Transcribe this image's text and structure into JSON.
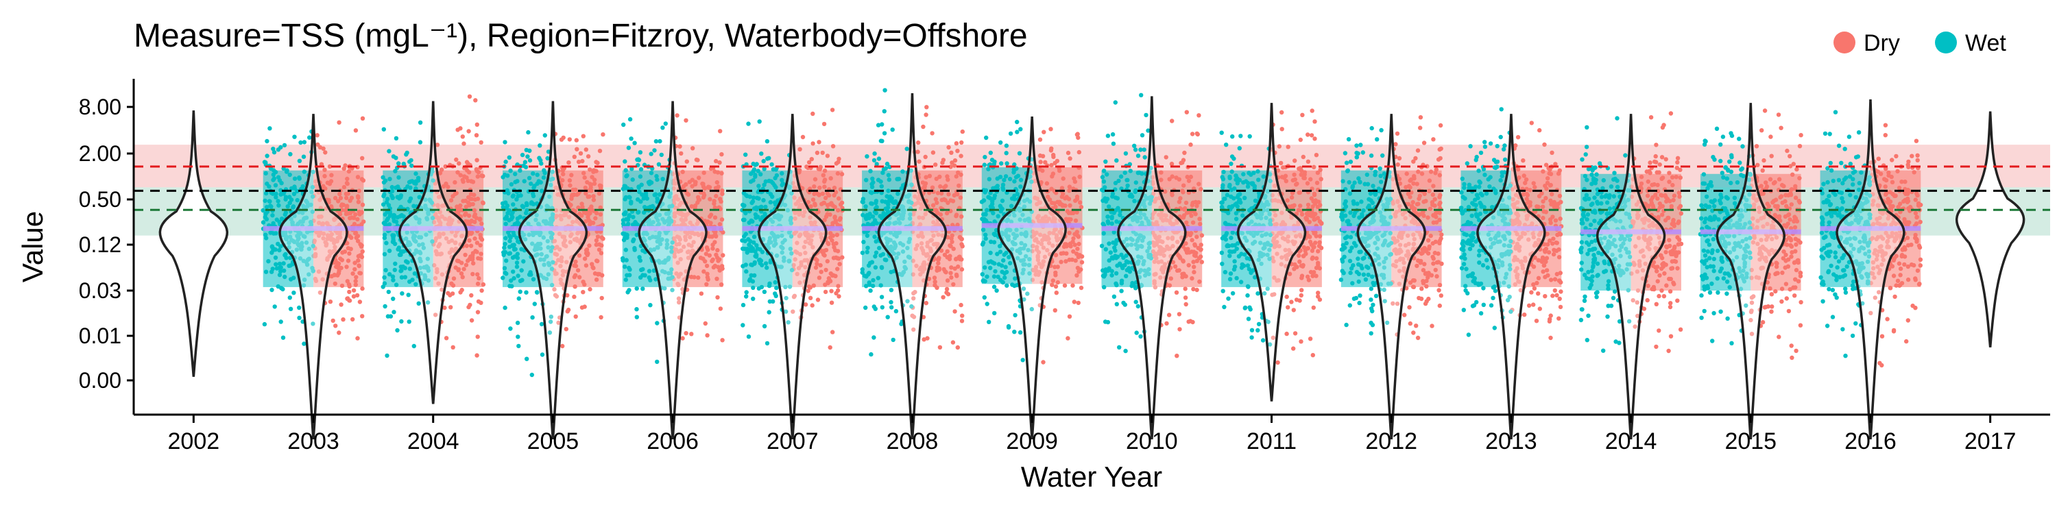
{
  "chart_data": {
    "type": "violin-scatter",
    "title": "Measure=TSS (mgL⁻¹), Region=Fitzroy, Waterbody=Offshore",
    "xlabel": "Water Year",
    "ylabel": "Value",
    "y_scale": "log",
    "y_ticks": [
      {
        "value": 8.0,
        "label": "8.00"
      },
      {
        "value": 2.0,
        "label": "2.00"
      },
      {
        "value": 0.5,
        "label": "0.50"
      },
      {
        "value": 0.12,
        "label": "0.12"
      },
      {
        "value": 0.03,
        "label": "0.03"
      },
      {
        "value": 0.01,
        "label": "0.01"
      },
      {
        "value": 0.0,
        "label": "0.00"
      }
    ],
    "categories": [
      "2002",
      "2003",
      "2004",
      "2005",
      "2006",
      "2007",
      "2008",
      "2009",
      "2010",
      "2011",
      "2012",
      "2013",
      "2014",
      "2015",
      "2016",
      "2017"
    ],
    "legend": {
      "position": "top-right",
      "items": [
        {
          "name": "Dry",
          "color": "#F8766D"
        },
        {
          "name": "Wet",
          "color": "#00BFC4"
        }
      ]
    },
    "colors": {
      "dry": "#F8766D",
      "wet": "#00BFC4",
      "median_line": "#B58CFF",
      "guideline_red": "#E31A1C",
      "guideline_black": "#000000",
      "guideline_green": "#1B7837",
      "band_red": "#F4A6A6",
      "band_green": "#9FD4C2"
    },
    "guidelines": [
      {
        "name": "upper",
        "value": 1.35,
        "color": "red",
        "style": "dashed"
      },
      {
        "name": "mid",
        "value": 0.65,
        "color": "black",
        "style": "dashed"
      },
      {
        "name": "lower",
        "value": 0.36,
        "color": "green",
        "style": "dashed"
      }
    ],
    "bands": [
      {
        "color": "red",
        "from": 0.72,
        "to": 2.6
      },
      {
        "color": "green",
        "from": 0.16,
        "to": 0.72
      }
    ],
    "violins": [
      {
        "year": "2002",
        "median": 0.2,
        "min": 0.0028,
        "max": 7.2,
        "has_points": false
      },
      {
        "year": "2003",
        "median": 0.2,
        "min": 0.0004,
        "max": 6.5,
        "has_points": true
      },
      {
        "year": "2004",
        "median": 0.2,
        "min": 0.0012,
        "max": 9.5,
        "has_points": true
      },
      {
        "year": "2005",
        "median": 0.2,
        "min": 0.0004,
        "max": 9.5,
        "has_points": true
      },
      {
        "year": "2006",
        "median": 0.2,
        "min": 0.0004,
        "max": 9.5,
        "has_points": true
      },
      {
        "year": "2007",
        "median": 0.2,
        "min": 0.0004,
        "max": 6.5,
        "has_points": true
      },
      {
        "year": "2008",
        "median": 0.2,
        "min": 0.0004,
        "max": 12.0,
        "has_points": true
      },
      {
        "year": "2009",
        "median": 0.22,
        "min": 0.0004,
        "max": 6.0,
        "has_points": true
      },
      {
        "year": "2010",
        "median": 0.2,
        "min": 0.0004,
        "max": 11.0,
        "has_points": true
      },
      {
        "year": "2011",
        "median": 0.2,
        "min": 0.0013,
        "max": 9.0,
        "has_points": true
      },
      {
        "year": "2012",
        "median": 0.2,
        "min": 0.0004,
        "max": 6.5,
        "has_points": true
      },
      {
        "year": "2013",
        "median": 0.2,
        "min": 0.0004,
        "max": 6.5,
        "has_points": true
      },
      {
        "year": "2014",
        "median": 0.18,
        "min": 0.0004,
        "max": 6.5,
        "has_points": true
      },
      {
        "year": "2015",
        "median": 0.18,
        "min": 0.0004,
        "max": 9.0,
        "has_points": true
      },
      {
        "year": "2016",
        "median": 0.2,
        "min": 0.0004,
        "max": 10.0,
        "has_points": true
      },
      {
        "year": "2017",
        "median": 0.3,
        "min": 0.007,
        "max": 7.0,
        "has_points": false
      }
    ]
  }
}
